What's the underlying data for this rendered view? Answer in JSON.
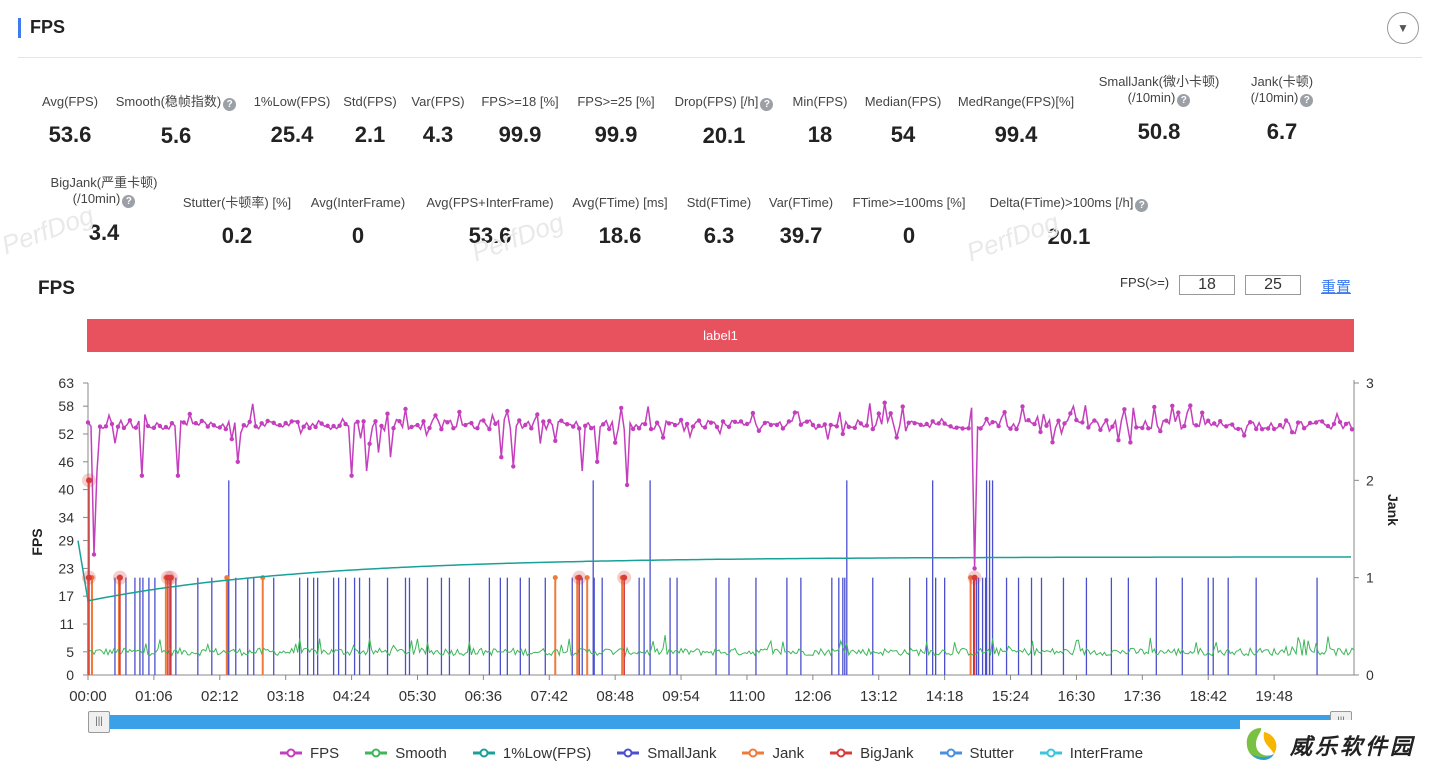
{
  "header": {
    "title": "FPS",
    "collapse_icon": "▼"
  },
  "stats_row1": [
    {
      "label": "Avg(FPS)",
      "value": "53.6",
      "x": 70,
      "help": false
    },
    {
      "label": "Smooth(稳帧指数)",
      "value": "5.6",
      "x": 176,
      "help": true
    },
    {
      "label": "1%Low(FPS)",
      "value": "25.4",
      "x": 292,
      "help": false
    },
    {
      "label": "Std(FPS)",
      "value": "2.1",
      "x": 370,
      "help": false
    },
    {
      "label": "Var(FPS)",
      "value": "4.3",
      "x": 438,
      "help": false
    },
    {
      "label": "FPS>=18 [%]",
      "value": "99.9",
      "x": 520,
      "help": false
    },
    {
      "label": "FPS>=25 [%]",
      "value": "99.9",
      "x": 616,
      "help": false
    },
    {
      "label": "Drop(FPS) [/h]",
      "value": "20.1",
      "x": 724,
      "help": true
    },
    {
      "label": "Min(FPS)",
      "value": "18",
      "x": 820,
      "help": false
    },
    {
      "label": "Median(FPS)",
      "value": "54",
      "x": 903,
      "help": false
    },
    {
      "label": "MedRange(FPS)[%]",
      "value": "99.4",
      "x": 1016,
      "help": false
    },
    {
      "label": "SmallJank(微小卡顿)",
      "label2": "(/10min)",
      "value": "50.8",
      "x": 1159,
      "help": true
    },
    {
      "label": "Jank(卡顿)",
      "label2": "(/10min)",
      "value": "6.7",
      "x": 1282,
      "help": true
    }
  ],
  "stats_row2": [
    {
      "label": "BigJank(严重卡顿)",
      "label2": "(/10min)",
      "value": "3.4",
      "x": 104,
      "help": true
    },
    {
      "label": "Stutter(卡顿率) [%]",
      "value": "0.2",
      "x": 237,
      "help": false
    },
    {
      "label": "Avg(InterFrame)",
      "value": "0",
      "x": 358,
      "help": false
    },
    {
      "label": "Avg(FPS+InterFrame)",
      "value": "53.6",
      "x": 490,
      "help": false
    },
    {
      "label": "Avg(FTime) [ms]",
      "value": "18.6",
      "x": 620,
      "help": false
    },
    {
      "label": "Std(FTime)",
      "value": "6.3",
      "x": 719,
      "help": false
    },
    {
      "label": "Var(FTime)",
      "value": "39.7",
      "x": 801,
      "help": false
    },
    {
      "label": "FTime>=100ms [%]",
      "value": "0",
      "x": 909,
      "help": false
    },
    {
      "label": "Delta(FTime)>100ms [/h]",
      "value": "20.1",
      "x": 1069,
      "help": true
    }
  ],
  "watermark": "PerfDog",
  "chart_title": "FPS",
  "threshold": {
    "label": "FPS(>=)",
    "value1": "18",
    "value2": "25",
    "reset": "重置"
  },
  "label_bar": "label1",
  "chart_data": {
    "type": "line",
    "x_ticks": [
      "00:00",
      "01:06",
      "02:12",
      "03:18",
      "04:24",
      "05:30",
      "06:36",
      "07:42",
      "08:48",
      "09:54",
      "11:00",
      "12:06",
      "13:12",
      "14:18",
      "15:24",
      "16:30",
      "17:36",
      "18:42",
      "19:48"
    ],
    "y_left_ticks": [
      "63",
      "58",
      "52",
      "46",
      "40",
      "34",
      "29",
      "23",
      "17",
      "11",
      "5",
      "0"
    ],
    "y_right_ticks": [
      "3",
      "2",
      "1",
      "0"
    ],
    "ylabel": "FPS",
    "ylabel_right": "Jank",
    "ylim_left": [
      0,
      63
    ],
    "ylim_right": [
      0,
      3
    ],
    "xlim_minutes": [
      0,
      1268
    ],
    "series": [
      {
        "name": "FPS",
        "color": "#c43fbd",
        "approx_mean": 54
      },
      {
        "name": "Smooth",
        "color": "#3fb65a",
        "approx_mean": 5
      },
      {
        "name": "1%Low(FPS)",
        "color": "#1aa197",
        "approx_start": 16,
        "approx_end": 25.5
      },
      {
        "name": "SmallJank",
        "color": "#4b4fcf"
      },
      {
        "name": "Jank",
        "color": "#f07a3a"
      },
      {
        "name": "BigJank",
        "color": "#d93a3a"
      },
      {
        "name": "Stutter",
        "color": "#4a8fe0"
      },
      {
        "name": "InterFrame",
        "color": "#39c6d9"
      }
    ],
    "bigjank_minutes": [
      1,
      32,
      80,
      83,
      492,
      537,
      888
    ],
    "jank_minutes": [
      0,
      4,
      31,
      78,
      139,
      175,
      468,
      490,
      500,
      535,
      884
    ],
    "smalljank_minutes": [
      0,
      27,
      38,
      47,
      52,
      55,
      61,
      67,
      82,
      88,
      110,
      124,
      140,
      148,
      160,
      166,
      186,
      212,
      220,
      226,
      230,
      246,
      251,
      258,
      267,
      272,
      282,
      300,
      318,
      322,
      340,
      354,
      362,
      382,
      402,
      413,
      420,
      433,
      442,
      458,
      485,
      495,
      507,
      515,
      537,
      552,
      557,
      583,
      590,
      629,
      642,
      669,
      700,
      714,
      745,
      752,
      756,
      758,
      786,
      823,
      840,
      849,
      858,
      887,
      890,
      892,
      896,
      899,
      903,
      920,
      932,
      945,
      955,
      977,
      1000,
      1025,
      1042,
      1070,
      1096,
      1122,
      1127,
      1142,
      1170,
      1231
    ],
    "smalljank_tall_minutes": [
      141,
      506,
      563,
      760,
      846,
      900,
      903,
      906
    ]
  },
  "legend": [
    "FPS",
    "Smooth",
    "1%Low(FPS)",
    "SmallJank",
    "Jank",
    "BigJank",
    "Stutter",
    "InterFrame"
  ],
  "logo_text": "威乐软件园"
}
